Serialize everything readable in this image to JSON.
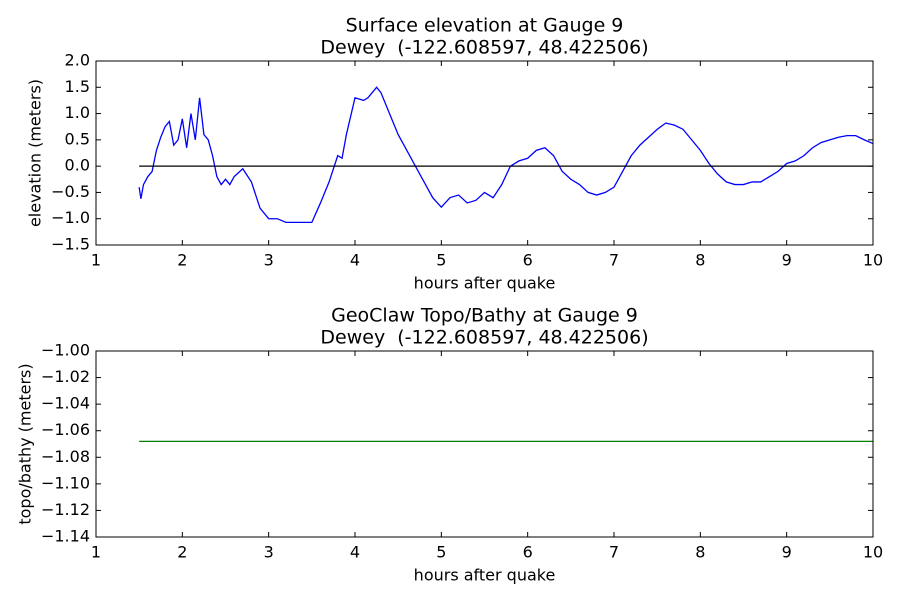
{
  "chart_data": [
    {
      "type": "line",
      "title": "Surface elevation at Gauge 9",
      "subtitle": "Dewey  (-122.608597, 48.422506)",
      "xlabel": "hours after quake",
      "ylabel": "elevation (meters)",
      "xlim": [
        1,
        10
      ],
      "xticks": [
        1,
        2,
        3,
        4,
        5,
        6,
        7,
        8,
        9,
        10
      ],
      "ylim": [
        -1.5,
        2.0
      ],
      "yticks": [
        {
          "value": -1.5,
          "label": "−1.5"
        },
        {
          "value": -1.0,
          "label": "−1.0"
        },
        {
          "value": -0.5,
          "label": "−0.5"
        },
        {
          "value": 0.0,
          "label": "0.0"
        },
        0.5,
        {
          "value": 1.0,
          "label": "1.0"
        },
        1.5,
        {
          "value": 2.0,
          "label": "2.0"
        }
      ],
      "series": [
        {
          "color": "#0000ff",
          "x": [
            1.5,
            1.52,
            1.55,
            1.6,
            1.65,
            1.7,
            1.75,
            1.8,
            1.85,
            1.9,
            1.95,
            2.0,
            2.05,
            2.1,
            2.15,
            2.2,
            2.25,
            2.3,
            2.35,
            2.4,
            2.45,
            2.5,
            2.55,
            2.6,
            2.7,
            2.8,
            2.9,
            3.0,
            3.1,
            3.2,
            3.3,
            3.5,
            3.6,
            3.7,
            3.8,
            3.85,
            3.9,
            4.0,
            4.1,
            4.15,
            4.2,
            4.25,
            4.3,
            4.4,
            4.5,
            4.6,
            4.7,
            4.8,
            4.9,
            5.0,
            5.1,
            5.2,
            5.3,
            5.4,
            5.5,
            5.6,
            5.7,
            5.8,
            5.9,
            6.0,
            6.1,
            6.2,
            6.3,
            6.4,
            6.5,
            6.6,
            6.7,
            6.8,
            6.9,
            7.0,
            7.1,
            7.2,
            7.3,
            7.4,
            7.5,
            7.6,
            7.7,
            7.8,
            7.9,
            8.0,
            8.1,
            8.2,
            8.3,
            8.4,
            8.5,
            8.6,
            8.7,
            8.8,
            8.9,
            9.0,
            9.1,
            9.2,
            9.3,
            9.4,
            9.5,
            9.6,
            9.7,
            9.8,
            9.9,
            10.0
          ],
          "values": [
            -0.4,
            -0.62,
            -0.35,
            -0.2,
            -0.1,
            0.3,
            0.55,
            0.75,
            0.85,
            0.4,
            0.5,
            0.9,
            0.35,
            1.0,
            0.5,
            1.3,
            0.6,
            0.5,
            0.2,
            -0.2,
            -0.35,
            -0.25,
            -0.35,
            -0.2,
            -0.05,
            -0.3,
            -0.8,
            -1.0,
            -1.0,
            -1.07,
            -1.07,
            -1.07,
            -0.7,
            -0.3,
            0.2,
            0.15,
            0.6,
            1.3,
            1.25,
            1.3,
            1.4,
            1.5,
            1.4,
            1.0,
            0.6,
            0.3,
            0.0,
            -0.3,
            -0.6,
            -0.78,
            -0.6,
            -0.55,
            -0.7,
            -0.65,
            -0.5,
            -0.6,
            -0.35,
            0.0,
            0.1,
            0.15,
            0.3,
            0.35,
            0.2,
            -0.1,
            -0.25,
            -0.35,
            -0.5,
            -0.55,
            -0.5,
            -0.4,
            -0.1,
            0.2,
            0.4,
            0.55,
            0.7,
            0.82,
            0.78,
            0.7,
            0.5,
            0.3,
            0.05,
            -0.15,
            -0.3,
            -0.35,
            -0.35,
            -0.3,
            -0.3,
            -0.2,
            -0.1,
            0.05,
            0.1,
            0.2,
            0.35,
            0.45,
            0.5,
            0.55,
            0.58,
            0.58,
            0.5,
            0.43
          ]
        },
        {
          "color": "#000000",
          "x": [
            1.5,
            10
          ],
          "values": [
            0,
            0
          ]
        }
      ]
    },
    {
      "type": "line",
      "title": "GeoClaw Topo/Bathy at Gauge 9",
      "subtitle": "Dewey  (-122.608597, 48.422506)",
      "xlabel": "hours after quake",
      "ylabel": "topo/bathy (meters)",
      "xlim": [
        1,
        10
      ],
      "xticks": [
        1,
        2,
        3,
        4,
        5,
        6,
        7,
        8,
        9,
        10
      ],
      "ylim": [
        -1.14,
        -1.0
      ],
      "yticks": [
        {
          "value": -1.14,
          "label": "−1.14"
        },
        {
          "value": -1.12,
          "label": "−1.12"
        },
        {
          "value": -1.1,
          "label": "−1.10"
        },
        {
          "value": -1.08,
          "label": "−1.08"
        },
        {
          "value": -1.06,
          "label": "−1.06"
        },
        {
          "value": -1.04,
          "label": "−1.04"
        },
        {
          "value": -1.02,
          "label": "−1.02"
        },
        {
          "value": -1.0,
          "label": "−1.00"
        }
      ],
      "series": [
        {
          "color": "#008000",
          "x": [
            1.5,
            10
          ],
          "values": [
            -1.068,
            -1.068
          ]
        }
      ]
    }
  ]
}
